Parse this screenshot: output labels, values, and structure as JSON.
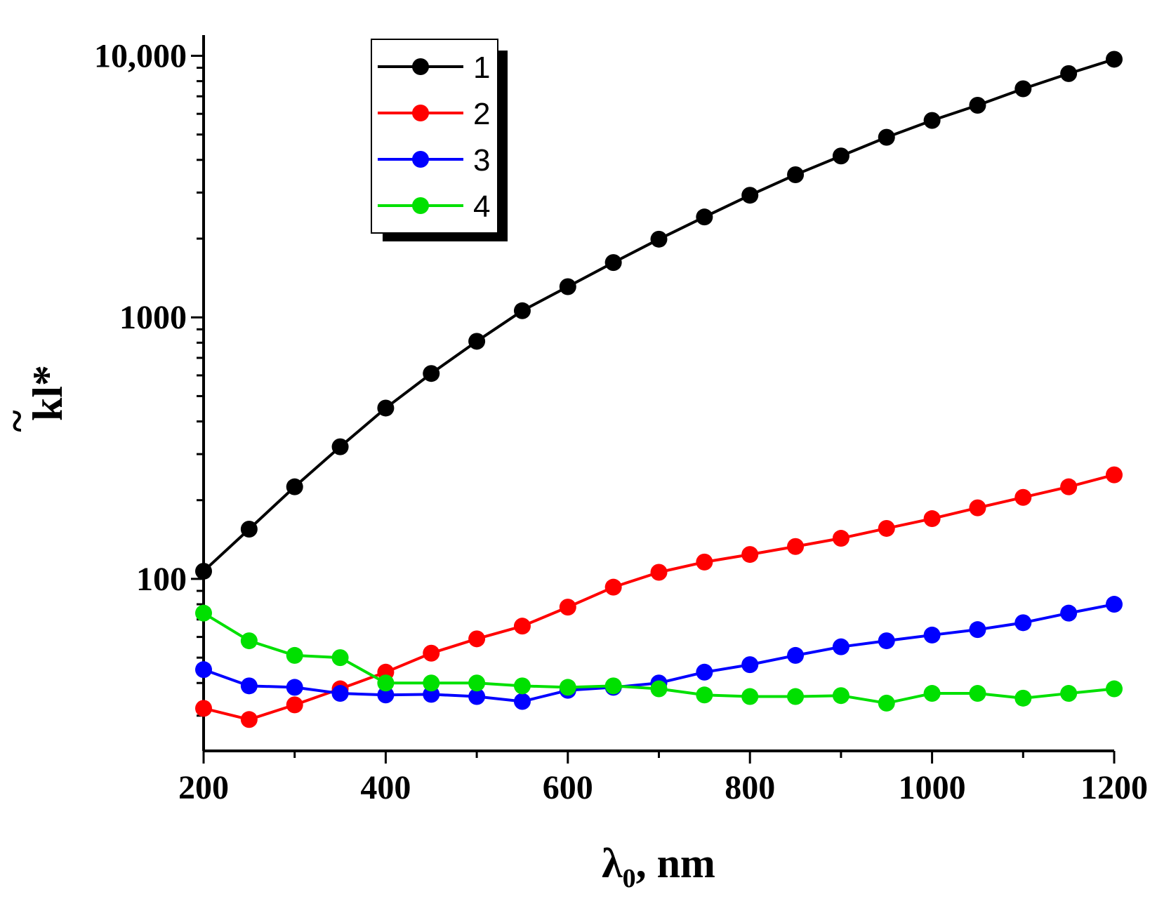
{
  "chart_data": {
    "type": "line",
    "title": "",
    "xlabel": "λ0, nm",
    "xlabel_main": "λ",
    "xlabel_sub": "0",
    "xlabel_rest": ", nm",
    "ylabel": "k̃l*",
    "ylabel_tilde": "~",
    "ylabel_main": "kl*",
    "xlim": [
      200,
      1200
    ],
    "ylim": [
      22,
      12000
    ],
    "yscale": "log",
    "x_ticks": [
      200,
      400,
      600,
      800,
      1000,
      1200
    ],
    "x_tick_labels": [
      "200",
      "400",
      "600",
      "800",
      "1000",
      "1200"
    ],
    "y_ticks": [
      100,
      1000,
      10000
    ],
    "y_tick_labels": [
      "100",
      "1000",
      "10,000"
    ],
    "legend_position": "top-left",
    "grid": false,
    "x": [
      200,
      250,
      300,
      350,
      400,
      450,
      500,
      550,
      600,
      650,
      700,
      750,
      800,
      850,
      900,
      950,
      1000,
      1050,
      1100,
      1150,
      1200
    ],
    "series": [
      {
        "name": "1",
        "color": "#000000",
        "values": [
          107,
          155,
          225,
          320,
          450,
          610,
          810,
          1060,
          1310,
          1620,
          1990,
          2420,
          2930,
          3510,
          4140,
          4880,
          5660,
          6470,
          7480,
          8550,
          9700
        ]
      },
      {
        "name": "2",
        "color": "#ff0000",
        "values": [
          32,
          29,
          33,
          38,
          44,
          52,
          59,
          66,
          78,
          93,
          106,
          116,
          124,
          133,
          143,
          156,
          170,
          187,
          205,
          225,
          250
        ]
      },
      {
        "name": "3",
        "color": "#0000ff",
        "values": [
          45,
          39,
          38.5,
          36.5,
          36,
          36.2,
          35.5,
          34,
          37.5,
          38.5,
          40,
          44,
          47,
          51,
          55,
          58,
          61,
          64,
          68,
          74,
          80
        ]
      },
      {
        "name": "4",
        "color": "#00e000",
        "values": [
          74,
          58,
          51,
          50,
          40,
          40,
          40,
          39,
          38.5,
          39,
          38,
          36,
          35.5,
          35.5,
          35.8,
          33.5,
          36.5,
          36.5,
          35,
          36.5,
          38
        ]
      }
    ]
  }
}
